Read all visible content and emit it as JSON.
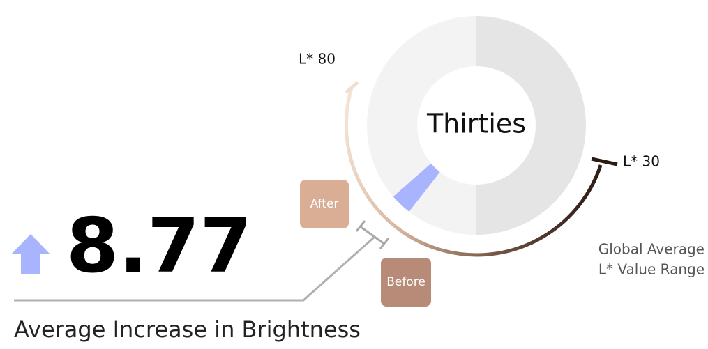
{
  "center_label": "Thirties",
  "value": "8.77",
  "caption": "Average Increase in Brightness",
  "range": {
    "high": "L* 80",
    "low": "L* 30",
    "title": [
      "Global Average",
      "L* Value Range"
    ]
  },
  "markers": {
    "after": "After",
    "before": "Before"
  }
}
